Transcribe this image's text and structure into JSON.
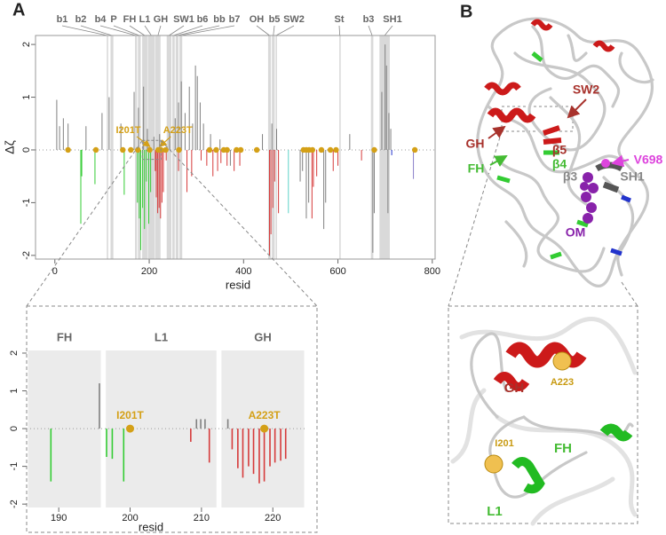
{
  "panel_labels": [
    "A",
    "B"
  ],
  "chart_data": [
    {
      "type": "bar",
      "x_label": "resid",
      "y_label": "Δζ",
      "xlim": [
        -41,
        806
      ],
      "ylim": [
        -2.07,
        2.17
      ],
      "xticks": [
        0,
        200,
        400,
        600,
        800
      ],
      "yticks": [
        -2,
        -1,
        0,
        1,
        2
      ],
      "region_color": "#d9d9d9",
      "regions": [
        {
          "name": "b1",
          "start": 110,
          "end": 113
        },
        {
          "name": "b2",
          "start": 118,
          "end": 124
        },
        {
          "name": "b4",
          "start": 170,
          "end": 174
        },
        {
          "name": "P",
          "start": 176,
          "end": 182
        },
        {
          "name": "FH",
          "start": 185,
          "end": 196
        },
        {
          "name": "L1",
          "start": 197,
          "end": 212
        },
        {
          "name": "GH",
          "start": 213,
          "end": 224
        },
        {
          "name": "SW1",
          "start": 237,
          "end": 247
        },
        {
          "name": "b6",
          "start": 249,
          "end": 254
        },
        {
          "name": "bb",
          "start": 256,
          "end": 262
        },
        {
          "name": "b7",
          "start": 264,
          "end": 270
        },
        {
          "name": "OH",
          "start": 452,
          "end": 458
        },
        {
          "name": "b5",
          "start": 460,
          "end": 466
        },
        {
          "name": "SW2",
          "start": 468,
          "end": 470
        },
        {
          "name": "St",
          "start": 603,
          "end": 605
        },
        {
          "name": "b3",
          "start": 670,
          "end": 675
        },
        {
          "name": "SH1",
          "start": 688,
          "end": 710
        }
      ],
      "series": [
        {
          "color": "#33cc33",
          "x": [
            55,
            57,
            85,
            147,
            175,
            179,
            182,
            186,
            190,
            194,
            199,
            203
          ],
          "values": [
            -1.4,
            -0.5,
            -0.65,
            -0.85,
            -1.0,
            -1.3,
            -1.9,
            -1.1,
            -1.5,
            -0.6,
            -1.4,
            -0.8
          ]
        },
        {
          "color": "#808080",
          "x": [
            4,
            10,
            18,
            28,
            66,
            100,
            115,
            140,
            168,
            177,
            188,
            196,
            210,
            222,
            243,
            255,
            262,
            268,
            276,
            285,
            292,
            298,
            302,
            308,
            315,
            330,
            350,
            372,
            440,
            460,
            470,
            520,
            525,
            533,
            538,
            570,
            574,
            625,
            674,
            677,
            693,
            700,
            703,
            706,
            708,
            712
          ],
          "values": [
            0.95,
            0.45,
            0.6,
            0.5,
            0.45,
            0.7,
            1.0,
            0.5,
            1.1,
            0.8,
            1.2,
            0.4,
            0.25,
            0.3,
            0.35,
            0.6,
            0.9,
            1.3,
            0.7,
            1.2,
            0.5,
            1.6,
            1.4,
            0.9,
            0.5,
            0.3,
            0.2,
            -0.3,
            0.3,
            0.5,
            0.4,
            -0.6,
            -0.4,
            -1.3,
            -1.0,
            -1.5,
            -1.0,
            0.3,
            -1.95,
            -1.2,
            1.1,
            2.0,
            1.6,
            -1.2,
            0.7,
            0.4
          ]
        },
        {
          "color": "#d63a3a",
          "x": [
            213,
            215,
            218,
            221,
            224,
            227,
            230,
            236,
            262,
            280,
            290,
            310,
            322,
            335,
            345,
            352,
            365,
            380,
            392,
            455,
            458,
            462,
            466,
            474,
            545,
            548,
            555,
            590,
            600,
            650
          ],
          "values": [
            -0.4,
            -0.9,
            -1.2,
            -1.1,
            -1.3,
            -1.0,
            -0.8,
            -0.2,
            -0.4,
            -0.8,
            -0.5,
            -0.2,
            -0.3,
            -0.5,
            -0.4,
            -0.25,
            -0.3,
            -0.4,
            -0.3,
            -2.0,
            -1.6,
            -1.1,
            -0.6,
            -1.2,
            -1.3,
            -0.7,
            -0.5,
            -0.4,
            -0.3,
            -0.2
          ]
        },
        {
          "color": "#5fd3c8",
          "x": [
            495
          ],
          "values": [
            -1.2
          ]
        },
        {
          "color": "#2233cc",
          "x": [
            714
          ],
          "values": [
            -0.1
          ]
        },
        {
          "color": "#8a7fc8",
          "x": [
            760
          ],
          "values": [
            -0.55
          ]
        }
      ],
      "markers": {
        "color": "#d4a017",
        "y": 0,
        "x": [
          28,
          87,
          144,
          161,
          176,
          201,
          219,
          225,
          235,
          263,
          328,
          342,
          358,
          365,
          385,
          394,
          428,
          527,
          533,
          539,
          546,
          565,
          584,
          596,
          677,
          763
        ]
      },
      "annotations": [
        {
          "text": "I201T",
          "x": 201
        },
        {
          "text": "A223T",
          "x": 223
        }
      ]
    },
    {
      "type": "bar",
      "x_label": "resid",
      "xlim": [
        185.5,
        224.7
      ],
      "ylim": [
        -2.09,
        2.07
      ],
      "xticks": [
        190,
        200,
        210,
        220
      ],
      "yticks": [
        -2,
        -1,
        0,
        1,
        2
      ],
      "region_color": "#ebebeb",
      "regions": [
        {
          "name": "FH",
          "start": 185.7,
          "end": 195.9
        },
        {
          "name": "L1",
          "start": 196.6,
          "end": 212.1
        },
        {
          "name": "GH",
          "start": 212.8,
          "end": 224.4
        }
      ],
      "series": [
        {
          "color": "#33cc33",
          "x": [
            188.9,
            196.7,
            197.5,
            199.1
          ],
          "values": [
            -1.4,
            -0.75,
            -0.8,
            -1.4
          ]
        },
        {
          "color": "#808080",
          "x": [
            195.7,
            209.3,
            209.9,
            210.5,
            213.7
          ],
          "values": [
            1.2,
            0.25,
            0.25,
            0.25,
            0.25
          ]
        },
        {
          "color": "#d63a3a",
          "x": [
            208.5,
            211.1,
            214.3,
            215.1,
            215.8,
            216.6,
            217.3,
            218.1,
            218.8,
            219.6,
            220.3,
            221.1,
            221.8
          ],
          "values": [
            -0.35,
            -0.9,
            -0.55,
            -1.05,
            -1.3,
            -1.0,
            -1.2,
            -1.45,
            -1.4,
            -1.0,
            -0.9,
            -0.85,
            -0.8
          ]
        }
      ],
      "markers": {
        "color": "#d4a017",
        "y": 0,
        "x": [
          200,
          218.8
        ]
      },
      "annotations": [
        {
          "text": "I201T",
          "x": 200
        },
        {
          "text": "A223T",
          "x": 218.8
        }
      ]
    }
  ],
  "structure": {
    "labels": [
      {
        "text": "GH",
        "color": "#a8322c"
      },
      {
        "text": "SW2",
        "color": "#a8322c"
      },
      {
        "text": "FH",
        "color": "#44bb33"
      },
      {
        "text": "β5",
        "color": "#a8322c"
      },
      {
        "text": "β4",
        "color": "#44bb33"
      },
      {
        "text": "β3",
        "color": "#888888"
      },
      {
        "text": "V698",
        "color": "#dd44dd"
      },
      {
        "text": "SH1",
        "color": "#888888"
      },
      {
        "text": "OM",
        "color": "#8822aa"
      }
    ],
    "zoom_labels": [
      {
        "text": "GH",
        "color": "#a8322c"
      },
      {
        "text": "A223",
        "color": "#c89a10"
      },
      {
        "text": "FH",
        "color": "#44bb33"
      },
      {
        "text": "I201",
        "color": "#c89a10"
      },
      {
        "text": "L1",
        "color": "#44bb33"
      }
    ]
  }
}
